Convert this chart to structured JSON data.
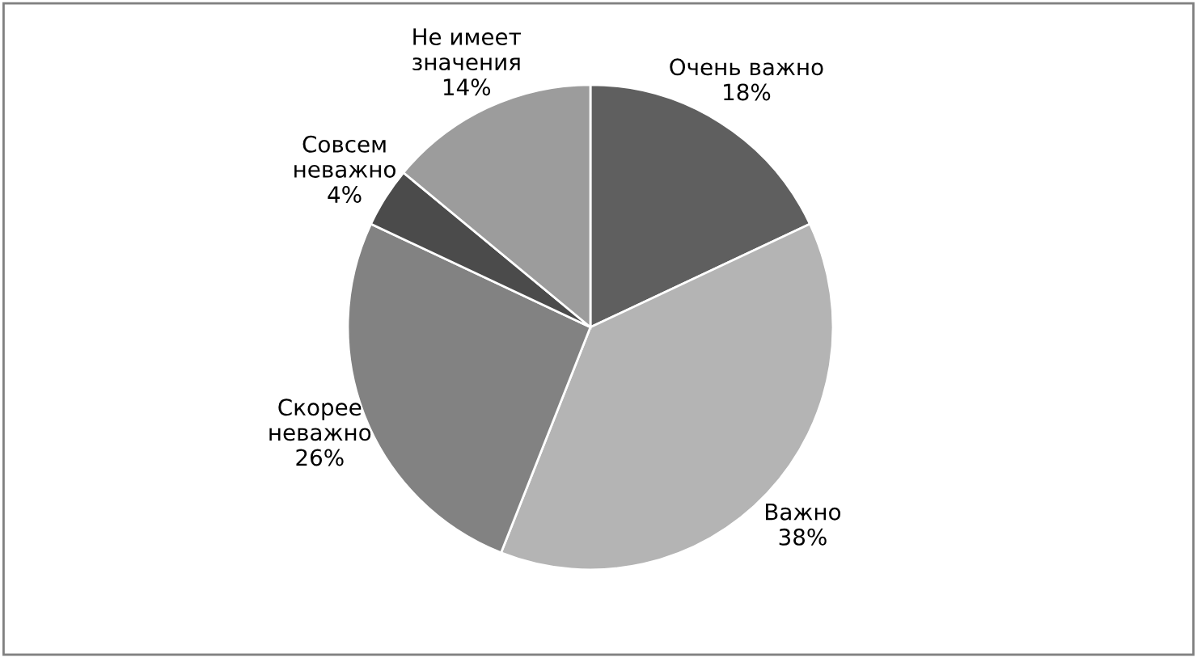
{
  "chart_data": {
    "type": "pie",
    "categories": [
      "Очень важно",
      "Важно",
      "Скорее\nневажно",
      "Совсем\nневажно",
      "Не имеет\nзначения"
    ],
    "values": [
      18,
      38,
      26,
      4,
      14
    ],
    "colors": [
      "#5f5f5f",
      "#b4b4b4",
      "#828282",
      "#4b4b4b",
      "#9c9c9c"
    ],
    "value_labels": [
      "18%",
      "38%",
      "26%",
      "4%",
      "14%"
    ],
    "legend": false
  }
}
